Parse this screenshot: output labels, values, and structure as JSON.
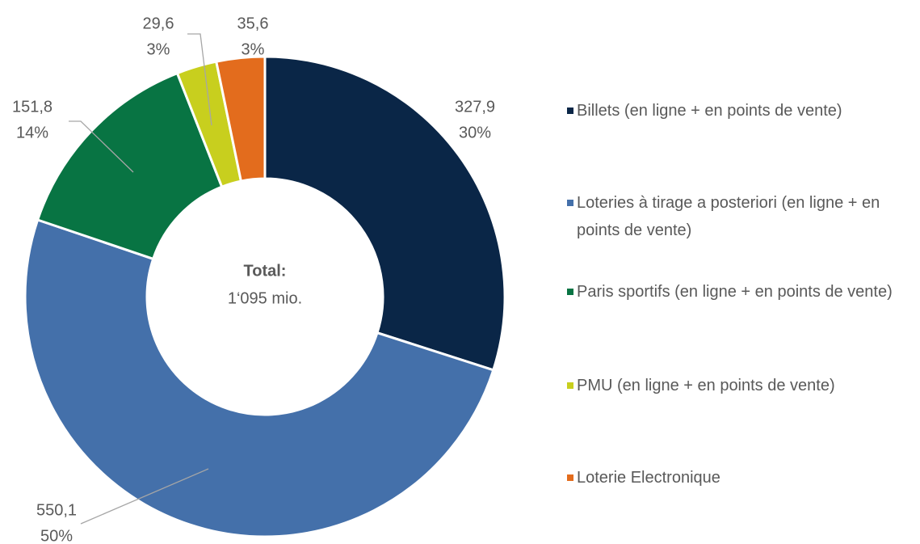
{
  "chart_data": {
    "type": "donut",
    "categories": [
      "Billets (en ligne + en points de vente)",
      "Loteries à tirage a posteriori (en ligne + en points de vente)",
      "Paris sportifs (en ligne + en points de vente)",
      "PMU (en ligne + en points de vente)",
      "Loterie Electronique"
    ],
    "values": [
      327.9,
      550.1,
      151.8,
      29.6,
      35.6
    ],
    "value_labels": [
      "327,9",
      "550,1",
      "151,8",
      "29,6",
      "35,6"
    ],
    "percent_labels": [
      "30%",
      "50%",
      "14%",
      "3%",
      "3%"
    ],
    "colors": [
      "#0a2647",
      "#4470aa",
      "#087443",
      "#c8cf1e",
      "#e36c1d"
    ],
    "center_title": "Total:",
    "center_text": "1‘095 mio.",
    "legend": "right"
  }
}
